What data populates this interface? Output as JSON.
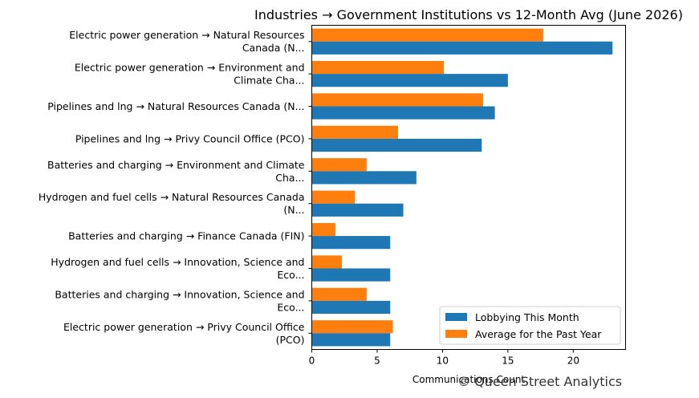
{
  "chart_data": {
    "type": "bar",
    "orientation": "horizontal",
    "title": "Industries → Government Institutions vs 12-Month Avg (June 2026)",
    "xlabel": "Communications Count",
    "ylabel": "",
    "xlim": [
      0,
      24
    ],
    "xticks": [
      0,
      5,
      10,
      15,
      20
    ],
    "grid": false,
    "legend_position": "lower-right",
    "categories": [
      [
        "Electric power generation → Natural Resources",
        "Canada (N..."
      ],
      [
        "Electric power generation → Environment and",
        "Climate Cha..."
      ],
      [
        "Pipelines and lng → Natural Resources Canada (N..."
      ],
      [
        "Pipelines and lng → Privy Council Office (PCO)"
      ],
      [
        "Batteries and charging → Environment and Climate",
        "Cha..."
      ],
      [
        "Hydrogen and fuel cells → Natural Resources Canada",
        "(N..."
      ],
      [
        "Batteries and charging → Finance Canada (FIN)"
      ],
      [
        "Hydrogen and fuel cells → Innovation, Science and",
        "Eco..."
      ],
      [
        "Batteries and charging → Innovation, Science and",
        "Eco..."
      ],
      [
        "Electric power generation → Privy Council Office",
        "(PCO)"
      ]
    ],
    "series": [
      {
        "name": "Lobbying This Month",
        "color": "#1f77b4",
        "values": [
          23,
          15,
          14,
          13,
          8,
          7,
          6,
          6,
          6,
          6
        ]
      },
      {
        "name": "Average for the Past Year",
        "color": "#ff7f0e",
        "values": [
          17.7,
          10.1,
          13.1,
          6.6,
          4.2,
          3.3,
          1.8,
          2.3,
          4.2,
          6.2
        ]
      }
    ]
  },
  "watermark": "© Queen Street Analytics"
}
